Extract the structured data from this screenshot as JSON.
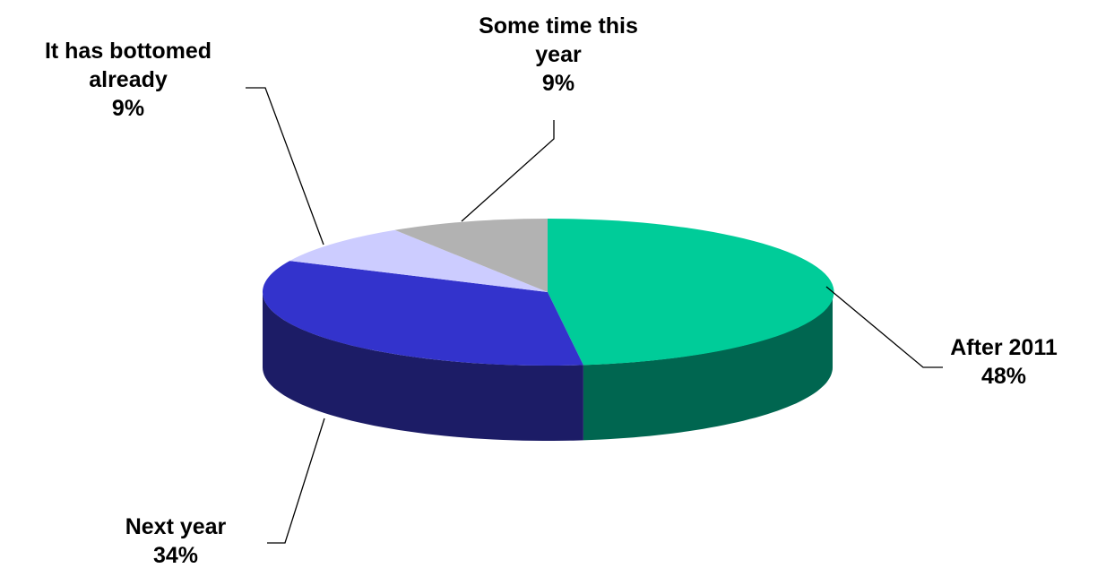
{
  "chart_data": {
    "type": "pie",
    "style": "3d-exploded-perspective",
    "slices": [
      {
        "label": [
          "After 2011"
        ],
        "value": 48,
        "value_label": "48%",
        "color": "#00CC99",
        "side_color": "#006650"
      },
      {
        "label": [
          "Next year"
        ],
        "value": 34,
        "value_label": "34%",
        "color": "#3333CC",
        "side_color": "#1C1C66"
      },
      {
        "label": [
          "It has bottomed",
          "already"
        ],
        "value": 9,
        "value_label": "9%",
        "color": "#CCCCFF",
        "side_color": "#8080B3"
      },
      {
        "label": [
          "Some time this",
          "year"
        ],
        "value": 9,
        "value_label": "9%",
        "color": "#B2B2B2",
        "side_color": "#7A7A7A"
      }
    ],
    "legend": "none"
  }
}
